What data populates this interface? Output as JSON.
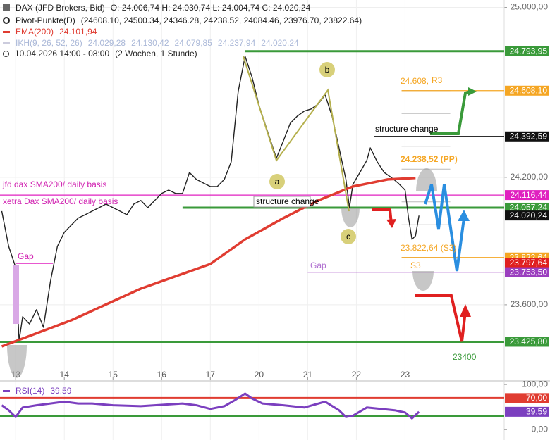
{
  "header": {
    "ohlc": "O: 24.006,74  H: 24.030,74  L: 24.004,74  C: 24.020,24",
    "pivot": "Pivot-Punkte(D)",
    "pivot_values": "(24608.10, 24500.34, 24346.28, 24238.52, 24084.46, 23976.70, 23822.64)",
    "ema_value": "24.101,94",
    "ikh": "IKH(9, 26, 52, 26)",
    "ikh_values": [
      "24.029,28",
      "24.130,42",
      "24.079,85",
      "24.237,94",
      "24.020,24"
    ],
    "range": "10.04.2026 14:00 - 08:00",
    "range_note": "(2 Wochen, 1 Stunde)"
  },
  "chart_data": {
    "type": "line",
    "xlim": [
      -4.5,
      140.5
    ],
    "xticks": [
      {
        "value": 0,
        "label": "13"
      },
      {
        "value": 14,
        "label": "14"
      },
      {
        "value": 28,
        "label": "15"
      },
      {
        "value": 42,
        "label": "16"
      },
      {
        "value": 56,
        "label": "17"
      },
      {
        "value": 70,
        "label": "20"
      },
      {
        "value": 84,
        "label": "21"
      },
      {
        "value": 98,
        "label": "22"
      },
      {
        "value": 112,
        "label": "23"
      }
    ],
    "ylim": [
      23245,
      25035
    ],
    "yticks": [
      {
        "value": 23600,
        "label": "23.600,00"
      },
      {
        "value": 24200,
        "label": "24.200,00"
      },
      {
        "value": 25000,
        "label": "25.000,00"
      }
    ],
    "grid": true,
    "series": [
      {
        "name": "DAX (JFD Brokers, Bid)",
        "color": "#222222",
        "x": [
          -4,
          -2,
          0,
          1,
          2,
          4,
          6,
          8,
          10,
          12,
          14,
          16,
          18,
          20,
          22,
          24,
          26,
          28,
          30,
          32,
          34,
          36,
          38,
          40,
          42,
          44,
          46,
          48,
          50,
          52,
          54,
          56,
          58,
          60,
          62,
          64,
          66,
          68,
          70,
          72,
          74,
          75,
          77,
          79,
          81,
          83,
          85,
          87,
          89,
          91,
          93,
          95,
          96,
          97,
          99,
          101,
          102,
          104,
          106,
          108,
          110,
          112,
          113,
          114,
          115,
          116
        ],
        "values": [
          24041,
          23875,
          23776,
          23430,
          23544,
          23510,
          23577,
          23494,
          23709,
          23875,
          23941,
          23975,
          24008,
          24024,
          24041,
          24057,
          24074,
          24057,
          24041,
          24024,
          24074,
          24091,
          24057,
          24091,
          24124,
          24140,
          24124,
          24124,
          24223,
          24190,
          24173,
          24157,
          24157,
          24190,
          24273,
          24604,
          24770,
          24671,
          24538,
          24439,
          24339,
          24290,
          24372,
          24455,
          24488,
          24512,
          24522,
          24545,
          24588,
          24488,
          24339,
          24190,
          24057,
          24167,
          24223,
          24280,
          24339,
          24273,
          24223,
          24200,
          24173,
          24140,
          24008,
          23908,
          23925,
          24020
        ]
      },
      {
        "name": "EMA(200)",
        "color": "#e03c31",
        "x": [
          -4,
          16,
          36,
          56,
          66,
          77,
          87,
          97,
          107,
          115
        ],
        "values": [
          23404,
          23527,
          23676,
          23792,
          23908,
          24008,
          24091,
          24157,
          24190,
          24197
        ]
      }
    ],
    "levels": [
      {
        "value": 24793.95,
        "label": "24.793,95",
        "color": "#3a9a3a",
        "line": "thick",
        "start": 66
      },
      {
        "value": 24608.1,
        "label": "24.608,10",
        "color": "#f5a623",
        "line": "thin",
        "start": 111
      },
      {
        "value": 24392.59,
        "label": "24.392,59",
        "color": "#111111",
        "line": "thin",
        "start": 103
      },
      {
        "value": 24116.44,
        "label": "24.116,44",
        "color": "#e020c0",
        "line": "thin",
        "start": -4.5
      },
      {
        "value": 24057.24,
        "label": "24.057,24",
        "color": "#3a9a3a",
        "line": "thick",
        "start": 48
      },
      {
        "value": 24020.24,
        "label": "24.020,24",
        "color": "#111111",
        "line": "none",
        "start": 116
      },
      {
        "value": 23822.64,
        "label": "23.822,64",
        "color": "#f5a623",
        "line": "thin",
        "start": 111
      },
      {
        "value": 23797.64,
        "label": "23.797,64",
        "color": "#e02020",
        "line": "none",
        "start": 116
      },
      {
        "value": 23753.5,
        "label": "23.753,50",
        "color": "#9b3fbf",
        "line": "thin",
        "start": 84
      },
      {
        "value": 23425.8,
        "label": "23.425,80",
        "color": "#3a9a3a",
        "line": "thick",
        "start": -4.5
      }
    ],
    "pivots": {
      "values": [
        24608.1,
        24500.34,
        24346.28,
        24238.52,
        24084.46,
        23976.7,
        23822.64
      ],
      "color": "#bbbbbb",
      "start": 111,
      "end": 125
    },
    "annotations": {
      "structure_1": "structure change",
      "structure_2": "structure change",
      "jfd": "jfd dax SMA200/ daily basis",
      "xetra": "xetra Dax SMA200/ daily basis",
      "gap_1": "Gap",
      "gap_2": "Gap",
      "r3_price": "24.608,",
      "r3": "R3",
      "pp": "24.238,52 (PP)",
      "s3_price": "23.822,64 (S3)",
      "s3": "S3",
      "target": "23400",
      "a": "a",
      "b": "b",
      "c": "c"
    },
    "rsi": {
      "name": "RSI(14)",
      "color": "#7b3fbf",
      "current": {
        "value": 39.59,
        "label": "39,59"
      },
      "ylim": [
        -23,
        108
      ],
      "yticks": [
        {
          "value": 0,
          "label": "0,00"
        },
        {
          "value": 100,
          "label": "100,00"
        }
      ],
      "levels": [
        {
          "value": 70,
          "label": "70,00",
          "color": "#e03c31"
        },
        {
          "value": 30,
          "color": "#3a9a3a"
        }
      ],
      "x": [
        -4,
        -2,
        0,
        2,
        6,
        10,
        14,
        18,
        22,
        28,
        36,
        42,
        48,
        52,
        56,
        60,
        63,
        66,
        68,
        71,
        77,
        83,
        89,
        93,
        95,
        97,
        101,
        105,
        109,
        112,
        114,
        116
      ],
      "values": [
        54,
        43,
        28,
        49,
        54,
        58,
        62,
        58,
        58,
        54,
        52,
        55,
        58,
        54,
        46,
        52,
        65,
        80,
        69,
        58,
        54,
        49,
        62,
        43,
        28,
        31,
        49,
        46,
        43,
        38,
        25,
        39.59
      ]
    }
  }
}
